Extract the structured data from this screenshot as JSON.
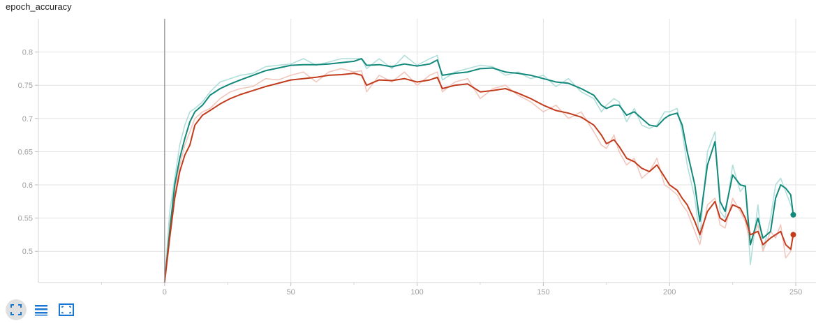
{
  "title": "epoch_accuracy",
  "toolbar": {
    "buttons": [
      "expand-icon",
      "list-icon",
      "fit-domain-icon"
    ],
    "accent": "#1976d2"
  },
  "chart_data": {
    "type": "line",
    "title": "epoch_accuracy",
    "xlabel": "",
    "ylabel": "",
    "xlim": [
      -50,
      258
    ],
    "ylim": [
      0.453,
      0.85
    ],
    "x_ticks": [
      0,
      50,
      100,
      150,
      200,
      250
    ],
    "y_ticks": [
      0.5,
      0.55,
      0.6,
      0.65,
      0.7,
      0.75,
      0.8
    ],
    "grid": true,
    "series": [
      {
        "color": "#12897a",
        "raw_color": "#b2dfdb",
        "smoothed_points": [
          [
            0,
            0.45
          ],
          [
            2,
            0.53
          ],
          [
            4,
            0.6
          ],
          [
            6,
            0.64
          ],
          [
            8,
            0.67
          ],
          [
            10,
            0.695
          ],
          [
            12,
            0.71
          ],
          [
            15,
            0.72
          ],
          [
            18,
            0.735
          ],
          [
            22,
            0.745
          ],
          [
            26,
            0.752
          ],
          [
            30,
            0.758
          ],
          [
            35,
            0.765
          ],
          [
            40,
            0.772
          ],
          [
            45,
            0.776
          ],
          [
            50,
            0.78
          ],
          [
            55,
            0.781
          ],
          [
            60,
            0.781
          ],
          [
            65,
            0.782
          ],
          [
            70,
            0.784
          ],
          [
            75,
            0.786
          ],
          [
            78,
            0.79
          ],
          [
            80,
            0.78
          ],
          [
            85,
            0.781
          ],
          [
            90,
            0.778
          ],
          [
            95,
            0.782
          ],
          [
            100,
            0.779
          ],
          [
            105,
            0.782
          ],
          [
            108,
            0.788
          ],
          [
            110,
            0.765
          ],
          [
            115,
            0.768
          ],
          [
            120,
            0.77
          ],
          [
            125,
            0.775
          ],
          [
            130,
            0.776
          ],
          [
            135,
            0.77
          ],
          [
            140,
            0.768
          ],
          [
            145,
            0.765
          ],
          [
            150,
            0.76
          ],
          [
            155,
            0.755
          ],
          [
            160,
            0.753
          ],
          [
            165,
            0.745
          ],
          [
            170,
            0.735
          ],
          [
            173,
            0.72
          ],
          [
            175,
            0.715
          ],
          [
            178,
            0.72
          ],
          [
            180,
            0.72
          ],
          [
            183,
            0.705
          ],
          [
            186,
            0.71
          ],
          [
            189,
            0.7
          ],
          [
            192,
            0.69
          ],
          [
            195,
            0.688
          ],
          [
            198,
            0.7
          ],
          [
            200,
            0.705
          ],
          [
            203,
            0.708
          ],
          [
            205,
            0.69
          ],
          [
            207,
            0.65
          ],
          [
            210,
            0.6
          ],
          [
            212,
            0.545
          ],
          [
            215,
            0.63
          ],
          [
            218,
            0.665
          ],
          [
            220,
            0.575
          ],
          [
            222,
            0.56
          ],
          [
            225,
            0.615
          ],
          [
            228,
            0.6
          ],
          [
            230,
            0.598
          ],
          [
            232,
            0.51
          ],
          [
            235,
            0.55
          ],
          [
            237,
            0.52
          ],
          [
            240,
            0.53
          ],
          [
            242,
            0.58
          ],
          [
            244,
            0.6
          ],
          [
            246,
            0.595
          ],
          [
            248,
            0.585
          ],
          [
            249,
            0.555
          ]
        ],
        "raw_points": [
          [
            0,
            0.45
          ],
          [
            2,
            0.56
          ],
          [
            4,
            0.61
          ],
          [
            6,
            0.66
          ],
          [
            8,
            0.69
          ],
          [
            10,
            0.71
          ],
          [
            12,
            0.715
          ],
          [
            15,
            0.725
          ],
          [
            18,
            0.74
          ],
          [
            22,
            0.755
          ],
          [
            26,
            0.76
          ],
          [
            30,
            0.765
          ],
          [
            35,
            0.768
          ],
          [
            40,
            0.778
          ],
          [
            45,
            0.78
          ],
          [
            50,
            0.782
          ],
          [
            55,
            0.79
          ],
          [
            60,
            0.78
          ],
          [
            65,
            0.785
          ],
          [
            70,
            0.79
          ],
          [
            75,
            0.79
          ],
          [
            78,
            0.79
          ],
          [
            80,
            0.775
          ],
          [
            85,
            0.79
          ],
          [
            90,
            0.775
          ],
          [
            95,
            0.795
          ],
          [
            100,
            0.78
          ],
          [
            105,
            0.79
          ],
          [
            108,
            0.795
          ],
          [
            110,
            0.758
          ],
          [
            115,
            0.77
          ],
          [
            120,
            0.775
          ],
          [
            125,
            0.78
          ],
          [
            130,
            0.778
          ],
          [
            135,
            0.765
          ],
          [
            140,
            0.77
          ],
          [
            145,
            0.76
          ],
          [
            150,
            0.765
          ],
          [
            155,
            0.748
          ],
          [
            160,
            0.76
          ],
          [
            165,
            0.74
          ],
          [
            170,
            0.73
          ],
          [
            173,
            0.71
          ],
          [
            175,
            0.72
          ],
          [
            178,
            0.73
          ],
          [
            180,
            0.725
          ],
          [
            183,
            0.695
          ],
          [
            186,
            0.715
          ],
          [
            189,
            0.69
          ],
          [
            192,
            0.685
          ],
          [
            195,
            0.69
          ],
          [
            198,
            0.71
          ],
          [
            200,
            0.71
          ],
          [
            203,
            0.715
          ],
          [
            205,
            0.68
          ],
          [
            207,
            0.63
          ],
          [
            210,
            0.58
          ],
          [
            212,
            0.52
          ],
          [
            215,
            0.65
          ],
          [
            218,
            0.68
          ],
          [
            220,
            0.56
          ],
          [
            222,
            0.55
          ],
          [
            225,
            0.63
          ],
          [
            228,
            0.59
          ],
          [
            230,
            0.6
          ],
          [
            232,
            0.48
          ],
          [
            235,
            0.57
          ],
          [
            237,
            0.5
          ],
          [
            240,
            0.55
          ],
          [
            242,
            0.6
          ],
          [
            244,
            0.61
          ],
          [
            246,
            0.59
          ],
          [
            248,
            0.57
          ],
          [
            249,
            0.56
          ]
        ]
      },
      {
        "color": "#c23b1c",
        "raw_color": "#f2c7bd",
        "smoothed_points": [
          [
            0,
            0.45
          ],
          [
            2,
            0.52
          ],
          [
            4,
            0.58
          ],
          [
            6,
            0.62
          ],
          [
            8,
            0.645
          ],
          [
            10,
            0.66
          ],
          [
            12,
            0.69
          ],
          [
            15,
            0.705
          ],
          [
            18,
            0.712
          ],
          [
            22,
            0.722
          ],
          [
            26,
            0.73
          ],
          [
            30,
            0.736
          ],
          [
            35,
            0.742
          ],
          [
            40,
            0.748
          ],
          [
            45,
            0.753
          ],
          [
            50,
            0.758
          ],
          [
            55,
            0.76
          ],
          [
            60,
            0.762
          ],
          [
            65,
            0.765
          ],
          [
            70,
            0.766
          ],
          [
            75,
            0.768
          ],
          [
            78,
            0.765
          ],
          [
            80,
            0.75
          ],
          [
            85,
            0.758
          ],
          [
            90,
            0.757
          ],
          [
            95,
            0.76
          ],
          [
            100,
            0.755
          ],
          [
            105,
            0.758
          ],
          [
            108,
            0.762
          ],
          [
            110,
            0.745
          ],
          [
            115,
            0.75
          ],
          [
            120,
            0.752
          ],
          [
            125,
            0.74
          ],
          [
            130,
            0.742
          ],
          [
            135,
            0.745
          ],
          [
            140,
            0.738
          ],
          [
            145,
            0.73
          ],
          [
            150,
            0.72
          ],
          [
            155,
            0.712
          ],
          [
            160,
            0.708
          ],
          [
            165,
            0.702
          ],
          [
            170,
            0.69
          ],
          [
            173,
            0.675
          ],
          [
            175,
            0.662
          ],
          [
            178,
            0.668
          ],
          [
            180,
            0.658
          ],
          [
            183,
            0.64
          ],
          [
            186,
            0.635
          ],
          [
            189,
            0.625
          ],
          [
            192,
            0.62
          ],
          [
            195,
            0.63
          ],
          [
            198,
            0.612
          ],
          [
            200,
            0.6
          ],
          [
            203,
            0.592
          ],
          [
            205,
            0.58
          ],
          [
            207,
            0.57
          ],
          [
            210,
            0.545
          ],
          [
            212,
            0.525
          ],
          [
            215,
            0.56
          ],
          [
            218,
            0.575
          ],
          [
            220,
            0.55
          ],
          [
            222,
            0.545
          ],
          [
            225,
            0.57
          ],
          [
            228,
            0.565
          ],
          [
            230,
            0.55
          ],
          [
            232,
            0.525
          ],
          [
            235,
            0.53
          ],
          [
            237,
            0.51
          ],
          [
            240,
            0.52
          ],
          [
            242,
            0.525
          ],
          [
            244,
            0.53
          ],
          [
            246,
            0.51
          ],
          [
            248,
            0.503
          ],
          [
            249,
            0.525
          ]
        ],
        "raw_points": [
          [
            0,
            0.45
          ],
          [
            2,
            0.54
          ],
          [
            4,
            0.59
          ],
          [
            6,
            0.63
          ],
          [
            8,
            0.66
          ],
          [
            10,
            0.68
          ],
          [
            12,
            0.7
          ],
          [
            15,
            0.71
          ],
          [
            18,
            0.715
          ],
          [
            22,
            0.73
          ],
          [
            26,
            0.74
          ],
          [
            30,
            0.745
          ],
          [
            35,
            0.748
          ],
          [
            40,
            0.76
          ],
          [
            45,
            0.758
          ],
          [
            50,
            0.765
          ],
          [
            55,
            0.77
          ],
          [
            60,
            0.755
          ],
          [
            65,
            0.77
          ],
          [
            70,
            0.775
          ],
          [
            75,
            0.77
          ],
          [
            78,
            0.772
          ],
          [
            80,
            0.74
          ],
          [
            85,
            0.765
          ],
          [
            90,
            0.755
          ],
          [
            95,
            0.77
          ],
          [
            100,
            0.75
          ],
          [
            105,
            0.765
          ],
          [
            108,
            0.77
          ],
          [
            110,
            0.74
          ],
          [
            115,
            0.755
          ],
          [
            120,
            0.76
          ],
          [
            125,
            0.73
          ],
          [
            130,
            0.745
          ],
          [
            135,
            0.75
          ],
          [
            140,
            0.735
          ],
          [
            145,
            0.725
          ],
          [
            150,
            0.71
          ],
          [
            155,
            0.72
          ],
          [
            160,
            0.7
          ],
          [
            165,
            0.71
          ],
          [
            170,
            0.68
          ],
          [
            173,
            0.66
          ],
          [
            175,
            0.655
          ],
          [
            178,
            0.675
          ],
          [
            180,
            0.65
          ],
          [
            183,
            0.63
          ],
          [
            186,
            0.64
          ],
          [
            189,
            0.61
          ],
          [
            192,
            0.62
          ],
          [
            195,
            0.64
          ],
          [
            198,
            0.6
          ],
          [
            200,
            0.595
          ],
          [
            203,
            0.585
          ],
          [
            205,
            0.57
          ],
          [
            207,
            0.56
          ],
          [
            210,
            0.53
          ],
          [
            212,
            0.51
          ],
          [
            215,
            0.57
          ],
          [
            218,
            0.58
          ],
          [
            220,
            0.54
          ],
          [
            222,
            0.535
          ],
          [
            225,
            0.58
          ],
          [
            228,
            0.56
          ],
          [
            230,
            0.545
          ],
          [
            232,
            0.51
          ],
          [
            235,
            0.54
          ],
          [
            237,
            0.5
          ],
          [
            240,
            0.53
          ],
          [
            242,
            0.52
          ],
          [
            244,
            0.54
          ],
          [
            246,
            0.49
          ],
          [
            248,
            0.5
          ],
          [
            249,
            0.53
          ]
        ]
      }
    ]
  }
}
